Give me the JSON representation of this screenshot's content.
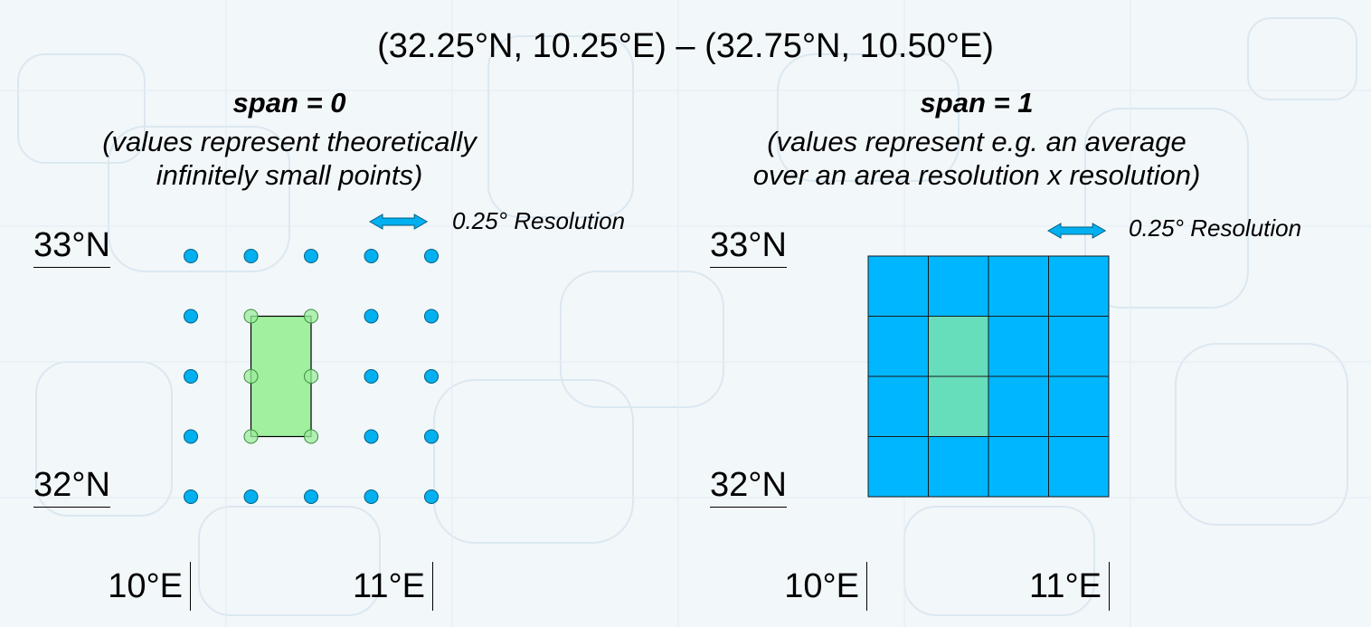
{
  "title": "(32.25°N, 10.25°E) – (32.75°N, 10.50°E)",
  "colors": {
    "point": "#00b0f0",
    "cell": "#00b7ff",
    "highlight_point": "#99ee99",
    "highlight_region": "#a0f0a0",
    "highlight_cell": "#66ddbb",
    "background": "#f2f7fa"
  },
  "left_panel": {
    "heading": "span = 0",
    "description_line1": "(values represent theoretically",
    "description_line2": "infinitely small points)",
    "resolution_label": "0.25° Resolution",
    "lat_top": "33°N",
    "lat_bottom": "32°N",
    "lon_left": "10°E",
    "lon_right": "11°E"
  },
  "right_panel": {
    "heading": "span = 1",
    "description_line1": "(values represent e.g. an average",
    "description_line2": "over an area resolution x resolution)",
    "resolution_label": "0.25° Resolution",
    "lat_top": "33°N",
    "lat_bottom": "32°N",
    "lon_left": "10°E",
    "lon_right": "11°E"
  },
  "grid": {
    "resolution_deg": 0.25,
    "lon_min": 10,
    "lon_max": 11,
    "lat_min": 32,
    "lat_max": 33,
    "selection": {
      "lat_min": 32.25,
      "lat_max": 32.75,
      "lon_min": 10.25,
      "lon_max": 10.5
    }
  }
}
